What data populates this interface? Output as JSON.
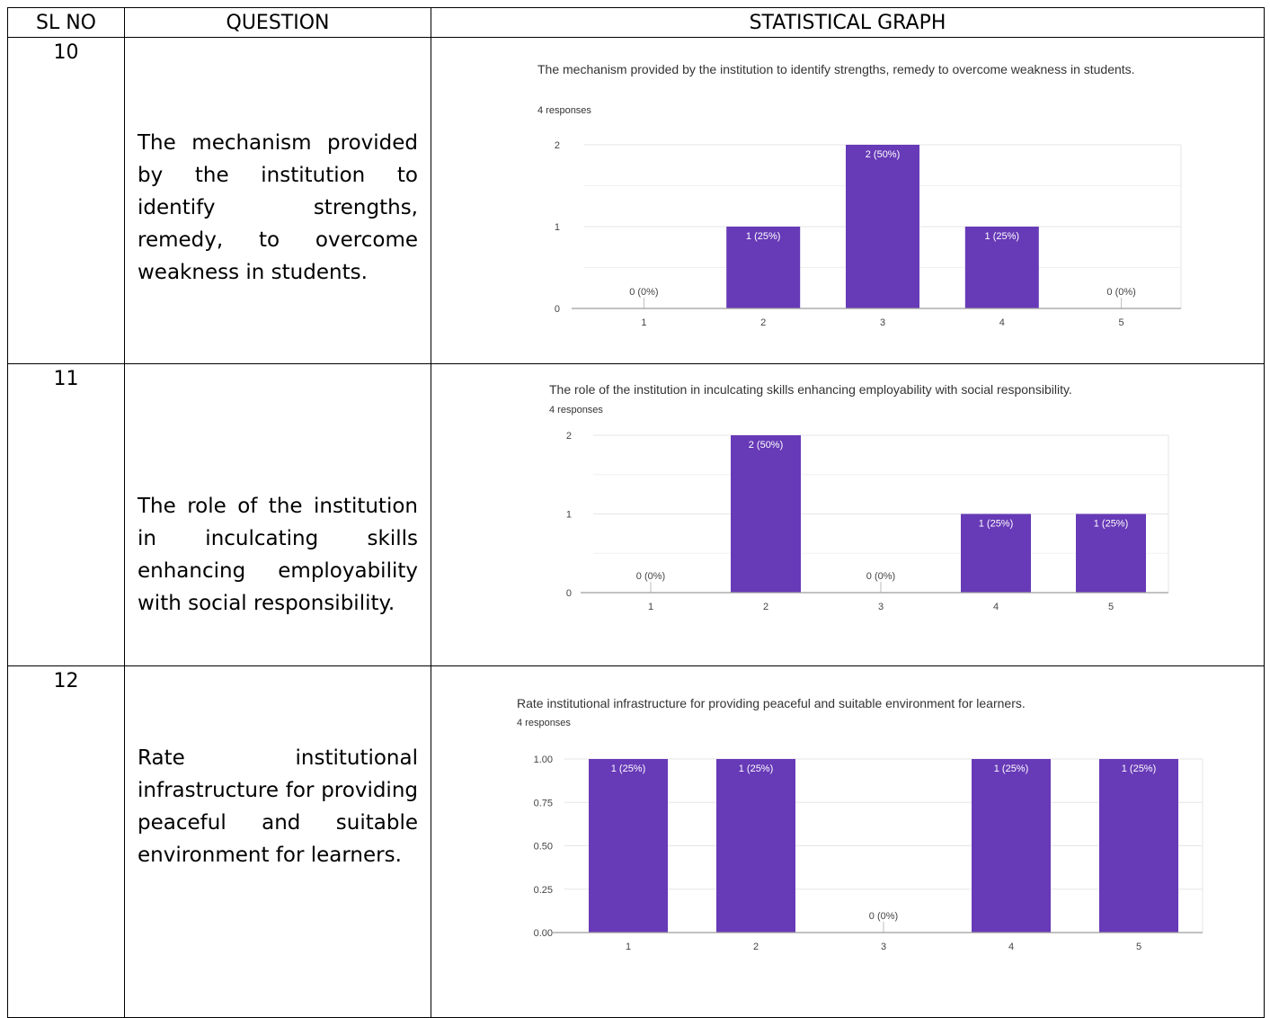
{
  "table": {
    "headers": [
      "SL NO",
      "QUESTION",
      "STATISTICAL GRAPH"
    ],
    "rows": [
      {
        "sl": "10",
        "question": "The mechanism provided by the institution to identify strengths, remedy, to overcome weakness in students."
      },
      {
        "sl": "11",
        "question": "The role of the institution in inculcating skills enhancing employability with social responsibility."
      },
      {
        "sl": "12",
        "question": "Rate institutional infrastructure for providing peaceful and suitable environment for learners."
      }
    ]
  },
  "colors": {
    "bar": "#673ab7",
    "grid": "#e6e6e6",
    "axis": "#9e9e9e",
    "label_inside": "#ffffff",
    "label_outside": "#444444"
  },
  "chart_data": [
    {
      "type": "bar",
      "title": "The mechanism provided by the institution to identify strengths, remedy to overcome weakness in students.",
      "subtitle": "4 responses",
      "categories": [
        "1",
        "2",
        "3",
        "4",
        "5"
      ],
      "values": [
        0,
        1,
        2,
        1,
        0
      ],
      "data_labels": [
        "0 (0%)",
        "1 (25%)",
        "2 (50%)",
        "1 (25%)",
        "0 (0%)"
      ],
      "yticks": [
        "0",
        "1",
        "2"
      ],
      "ylim": [
        0,
        2
      ],
      "grid": true
    },
    {
      "type": "bar",
      "title": "The role of the institution in inculcating skills enhancing employability with social responsibility.",
      "subtitle": "4 responses",
      "categories": [
        "1",
        "2",
        "3",
        "4",
        "5"
      ],
      "values": [
        0,
        2,
        0,
        1,
        1
      ],
      "data_labels": [
        "0 (0%)",
        "2 (50%)",
        "0 (0%)",
        "1 (25%)",
        "1 (25%)"
      ],
      "yticks": [
        "0",
        "1",
        "2"
      ],
      "ylim": [
        0,
        2
      ],
      "grid": true
    },
    {
      "type": "bar",
      "title": "Rate institutional infrastructure for providing peaceful and suitable environment for learners.",
      "subtitle": "4 responses",
      "categories": [
        "1",
        "2",
        "3",
        "4",
        "5"
      ],
      "values": [
        1,
        1,
        0,
        1,
        1
      ],
      "data_labels": [
        "1 (25%)",
        "1 (25%)",
        "0 (0%)",
        "1 (25%)",
        "1 (25%)"
      ],
      "yticks": [
        "0.00",
        "0.25",
        "0.50",
        "0.75",
        "1.00"
      ],
      "ylim": [
        0,
        1
      ],
      "grid": true
    }
  ]
}
